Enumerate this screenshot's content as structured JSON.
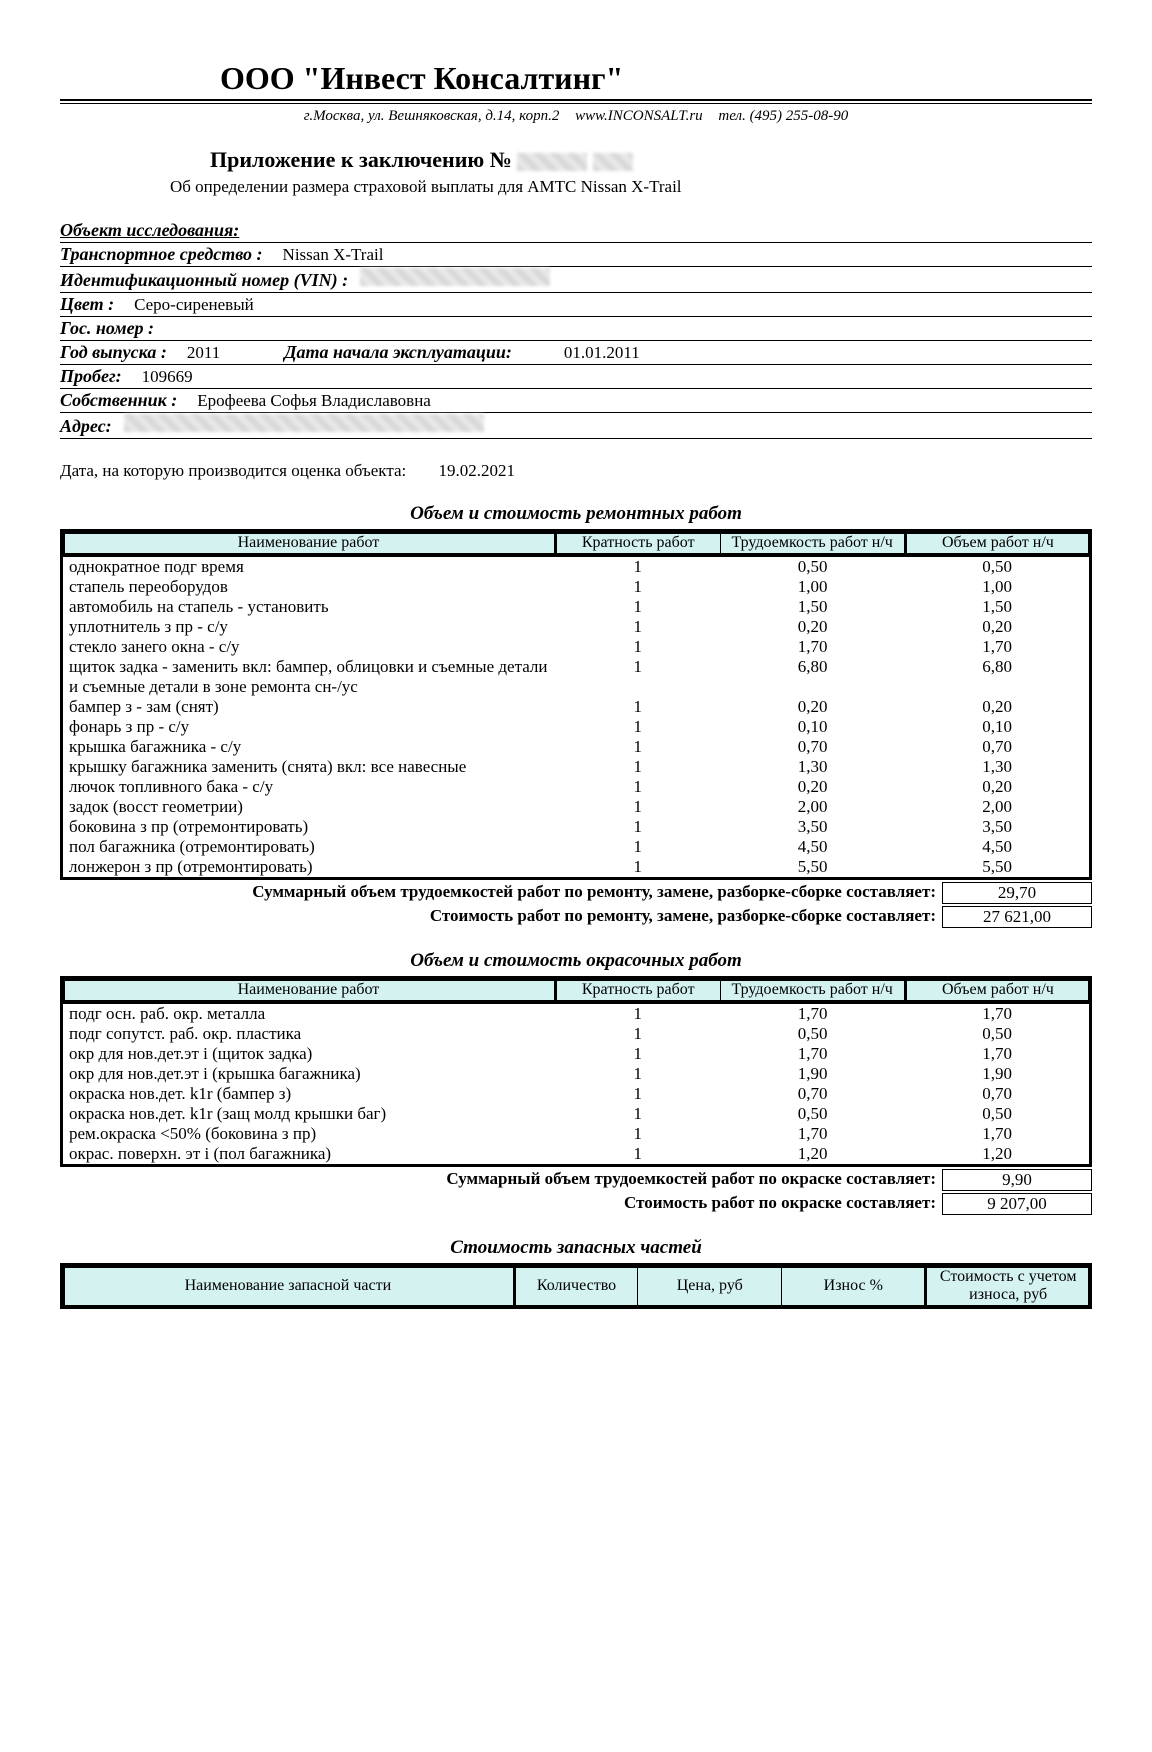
{
  "company": {
    "name": "ООО \"Инвест Консалтинг\"",
    "address": "г.Москва, ул. Вешняковская, д.14, корп.2",
    "site": "www.INCONSALT.ru",
    "phone": "тел. (495) 255-08-90"
  },
  "attachment": {
    "title_prefix": "Приложение к заключению №",
    "subtitle": "Об определении размера страховой выплаты для АМТС Nissan X-Trail"
  },
  "object": {
    "header": "Объект исследования:",
    "vehicle_lbl": "Транспортное средство :",
    "vehicle": "Nissan X-Trail",
    "vin_lbl": "Идентификационный номер (VIN) :",
    "color_lbl": "Цвет :",
    "color": "Серо-сиреневый",
    "plate_lbl": "Гос. номер :",
    "year_lbl": "Год выпуска :",
    "year": "2011",
    "start_lbl": "Дата начала эксплуатации:",
    "start": "01.01.2011",
    "mileage_lbl": "Пробег:",
    "mileage": "109669",
    "owner_lbl": "Собственник :",
    "owner": "Ерофеева Софья Владиславовна",
    "address_lbl": "Адрес:"
  },
  "eval_date": {
    "label": "Дата, на которую производится оценка объекта:",
    "value": "19.02.2021"
  },
  "repair": {
    "title": "Объем и стоимость ремонтных работ",
    "headers": {
      "name": "Наименование работ",
      "k": "Кратность работ",
      "h": "Трудоемкость работ н/ч",
      "v": "Объем работ н/ч"
    },
    "rows": [
      {
        "name": "однократное подг время",
        "k": "1",
        "h": "0,50",
        "v": "0,50"
      },
      {
        "name": "стапель переоборудов",
        "k": "1",
        "h": "1,00",
        "v": "1,00"
      },
      {
        "name": "автомобиль на стапель - установить",
        "k": "1",
        "h": "1,50",
        "v": "1,50"
      },
      {
        "name": "уплотнитель з пр - с/у",
        "k": "1",
        "h": "0,20",
        "v": "0,20"
      },
      {
        "name": "стекло занего окна - с/у",
        "k": "1",
        "h": "1,70",
        "v": "1,70"
      },
      {
        "name": "щиток задка - заменить вкл: бампер, облицовки и съемные детали и съемные детали в зоне ремонта сн-/ус",
        "k": "1",
        "h": "6,80",
        "v": "6,80"
      },
      {
        "name": "бампер з - зам (снят)",
        "k": "1",
        "h": "0,20",
        "v": "0,20"
      },
      {
        "name": "фонарь з пр - с/у",
        "k": "1",
        "h": "0,10",
        "v": "0,10"
      },
      {
        "name": "крышка багажника - с/у",
        "k": "1",
        "h": "0,70",
        "v": "0,70"
      },
      {
        "name": "крышку багажника заменить (снята) вкл: все навесные",
        "k": "1",
        "h": "1,30",
        "v": "1,30"
      },
      {
        "name": "лючок топливного бака - с/у",
        "k": "1",
        "h": "0,20",
        "v": "0,20"
      },
      {
        "name": "задок (восст геометрии)",
        "k": "1",
        "h": "2,00",
        "v": "2,00"
      },
      {
        "name": "боковина з пр (отремонтировать)",
        "k": "1",
        "h": "3,50",
        "v": "3,50"
      },
      {
        "name": "пол багажника (отремонтировать)",
        "k": "1",
        "h": "4,50",
        "v": "4,50"
      },
      {
        "name": "лонжерон з пр (отремонтировать)",
        "k": "1",
        "h": "5,50",
        "v": "5,50"
      }
    ],
    "sum_hours_lbl": "Суммарный объем трудоемкостей работ по ремонту, замене, разборке-сборке составляет:",
    "sum_hours": "29,70",
    "sum_cost_lbl": "Стоимость работ по ремонту, замене, разборке-сборке составляет:",
    "sum_cost": "27 621,00"
  },
  "paint": {
    "title": "Объем и стоимость окрасочных работ",
    "headers": {
      "name": "Наименование работ",
      "k": "Кратность работ",
      "h": "Трудоемкость работ н/ч",
      "v": "Объем работ н/ч"
    },
    "rows": [
      {
        "name": "подг осн. раб. окр. металла",
        "k": "1",
        "h": "1,70",
        "v": "1,70"
      },
      {
        "name": "подг сопутст. раб. окр. пластика",
        "k": "1",
        "h": "0,50",
        "v": "0,50"
      },
      {
        "name": "окр для нов.дет.эт i (щиток задка)",
        "k": "1",
        "h": "1,70",
        "v": "1,70"
      },
      {
        "name": "окр для нов.дет.эт i (крышка багажника)",
        "k": "1",
        "h": "1,90",
        "v": "1,90"
      },
      {
        "name": "окраска нов.дет. k1r (бампер з)",
        "k": "1",
        "h": "0,70",
        "v": "0,70"
      },
      {
        "name": "окраска нов.дет. k1r (защ молд крышки баг)",
        "k": "1",
        "h": "0,50",
        "v": "0,50"
      },
      {
        "name": "рем.окраска <50% (боковина з пр)",
        "k": "1",
        "h": "1,70",
        "v": "1,70"
      },
      {
        "name": "окрас. поверхн. эт i (пол багажника)",
        "k": "1",
        "h": "1,20",
        "v": "1,20"
      }
    ],
    "sum_hours_lbl": "Суммарный объем трудоемкостей работ по окраске составляет:",
    "sum_hours": "9,90",
    "sum_cost_lbl": "Стоимость работ по окраске составляет:",
    "sum_cost": "9 207,00"
  },
  "parts": {
    "title": "Стоимость запасных частей",
    "headers": {
      "name": "Наименование запасной части",
      "q": "Количество",
      "p": "Цена, руб",
      "w": "Износ %",
      "c": "Стоимость с учетом износа, руб"
    }
  },
  "style": {
    "header_bg": "#d4f2f0",
    "border": "#000000",
    "text": "#000000",
    "background": "#ffffff"
  }
}
